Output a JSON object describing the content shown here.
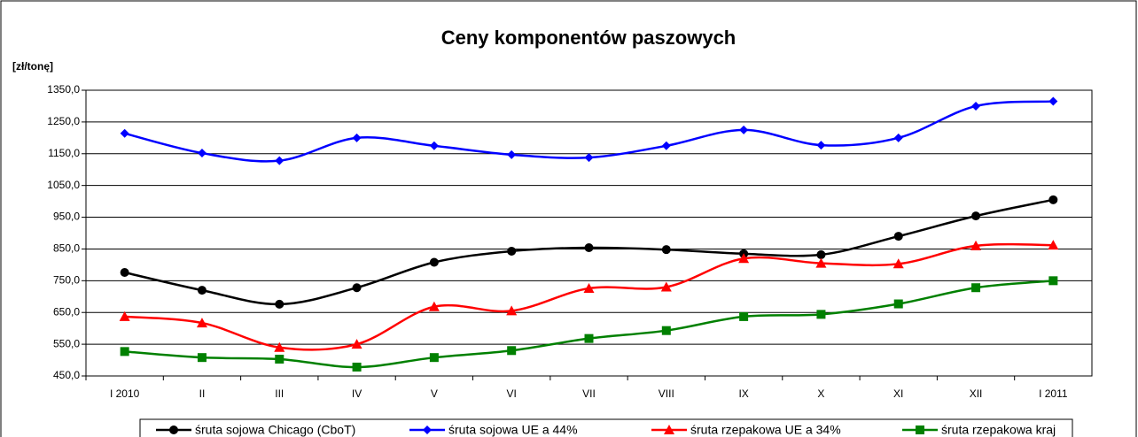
{
  "chart_data": {
    "type": "line",
    "title": "Ceny komponentów paszowych",
    "y_label": "[zł/tonę]",
    "categories": [
      "I 2010",
      "II",
      "III",
      "IV",
      "V",
      "VI",
      "VII",
      "VIII",
      "IX",
      "X",
      "XI",
      "XII",
      "I 2011"
    ],
    "series": [
      {
        "name": "śruta sojowa Chicago (CboT)",
        "color": "#000000",
        "marker": "circle",
        "values": [
          776,
          720,
          676,
          728,
          808,
          843,
          854,
          848,
          835,
          832,
          890,
          954,
          1005
        ]
      },
      {
        "name": "śruta sojowa UE a 44%",
        "color": "#0000ff",
        "marker": "diamond",
        "values": [
          1214,
          1152,
          1128,
          1200,
          1175,
          1147,
          1138,
          1175,
          1225,
          1177,
          1200,
          1300,
          1315
        ]
      },
      {
        "name": "śruta rzepakowa UE a 34%",
        "color": "#ff0000",
        "marker": "triangle",
        "values": [
          637,
          617,
          540,
          550,
          668,
          655,
          726,
          730,
          820,
          805,
          803,
          860,
          862
        ]
      },
      {
        "name": "śruta rzepakowa kraj",
        "color": "#008000",
        "marker": "square",
        "values": [
          527,
          508,
          503,
          478,
          508,
          530,
          568,
          593,
          637,
          644,
          677,
          728,
          750
        ]
      }
    ],
    "ylim": [
      450,
      1350
    ],
    "yticks": [
      {
        "value": 450,
        "label": "450,0"
      },
      {
        "value": 550,
        "label": "550,0"
      },
      {
        "value": 650,
        "label": "650,0"
      },
      {
        "value": 750,
        "label": "750,0"
      },
      {
        "value": 850,
        "label": "850,0"
      },
      {
        "value": 950,
        "label": "950,0"
      },
      {
        "value": 1050,
        "label": "1050,0"
      },
      {
        "value": 1150,
        "label": "1150,0"
      },
      {
        "value": 1250,
        "label": "1250,0"
      },
      {
        "value": 1350,
        "label": "1350,0"
      }
    ],
    "grid": true,
    "legend": "bottom"
  }
}
